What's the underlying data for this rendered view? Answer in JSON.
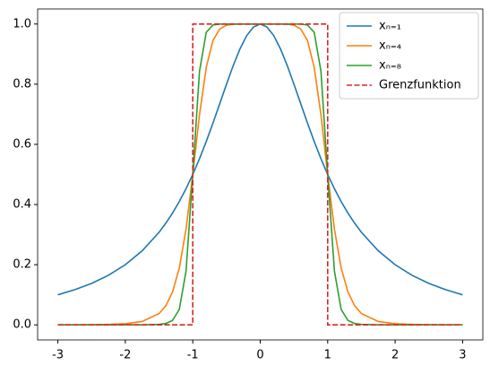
{
  "chart_data": {
    "type": "line",
    "x": [
      -3,
      -2.75,
      -2.5,
      -2.25,
      -2,
      -1.75,
      -1.5,
      -1.4,
      -1.3,
      -1.2,
      -1.1,
      -1,
      -0.9,
      -0.8,
      -0.7,
      -0.6,
      -0.5,
      -0.4,
      -0.3,
      -0.2,
      -0.1,
      0,
      0.1,
      0.2,
      0.3,
      0.4,
      0.5,
      0.6,
      0.7,
      0.8,
      0.9,
      1,
      1.1,
      1.2,
      1.3,
      1.4,
      1.5,
      1.75,
      2,
      2.25,
      2.5,
      2.75,
      3
    ],
    "series": [
      {
        "name": "xₙ₌₁",
        "color": "#1f77b4",
        "values": [
          0.1,
          0.1168,
          0.1379,
          0.1649,
          0.2,
          0.2462,
          0.3077,
          0.3378,
          0.3717,
          0.4098,
          0.4525,
          0.5,
          0.5525,
          0.6098,
          0.6711,
          0.7353,
          0.8,
          0.8621,
          0.9174,
          0.9615,
          0.9901,
          1,
          0.9901,
          0.9615,
          0.9174,
          0.8621,
          0.8,
          0.7353,
          0.6711,
          0.6098,
          0.5525,
          0.5,
          0.4525,
          0.4098,
          0.3717,
          0.3378,
          0.3077,
          0.2462,
          0.2,
          0.1649,
          0.1379,
          0.1168,
          0.1
        ]
      },
      {
        "name": "xₙ₌₄",
        "color": "#ff7f0e",
        "values": [
          0.0002,
          0.0003,
          0.0007,
          0.0015,
          0.0039,
          0.0112,
          0.0376,
          0.0635,
          0.1092,
          0.1887,
          0.3181,
          0.5,
          0.6991,
          0.8563,
          0.9455,
          0.9835,
          0.9961,
          0.9993,
          0.9999,
          1,
          1,
          1,
          1,
          1,
          0.9999,
          0.9993,
          0.9961,
          0.9835,
          0.9455,
          0.8563,
          0.6991,
          0.5,
          0.3181,
          0.1887,
          0.1092,
          0.0635,
          0.0376,
          0.0112,
          0.0039,
          0.0015,
          0.0007,
          0.0003,
          0.0002
        ]
      },
      {
        "name": "xₙ₌₈",
        "color": "#2ca02c",
        "values": [
          0,
          0,
          0,
          0,
          0,
          0.0001,
          0.0015,
          0.0046,
          0.0148,
          0.0513,
          0.1787,
          0.5,
          0.8436,
          0.9726,
          0.9967,
          0.9997,
          1,
          1,
          1,
          1,
          1,
          1,
          1,
          1,
          1,
          1,
          1,
          0.9997,
          0.9967,
          0.9726,
          0.8436,
          0.5,
          0.1787,
          0.0513,
          0.0148,
          0.0046,
          0.0015,
          0.0001,
          0,
          0,
          0,
          0,
          0
        ]
      },
      {
        "name": "Grenzfunktion",
        "color": "#d62728",
        "dashed": true,
        "x": [
          -3,
          -1,
          -1,
          1,
          1,
          3
        ],
        "values": [
          0,
          0,
          1,
          1,
          0,
          0
        ]
      }
    ],
    "xlim": [
      -3.3,
      3.3
    ],
    "xticks": [
      -3,
      -2,
      -1,
      0,
      1,
      2,
      3
    ],
    "ylim": [
      -0.05,
      1.05
    ],
    "yticks": [
      {
        "value": 0,
        "label": "0.0"
      },
      0.2,
      0.4,
      0.6,
      0.8,
      {
        "value": 1,
        "label": "1.0"
      }
    ],
    "legend": "upper right"
  }
}
